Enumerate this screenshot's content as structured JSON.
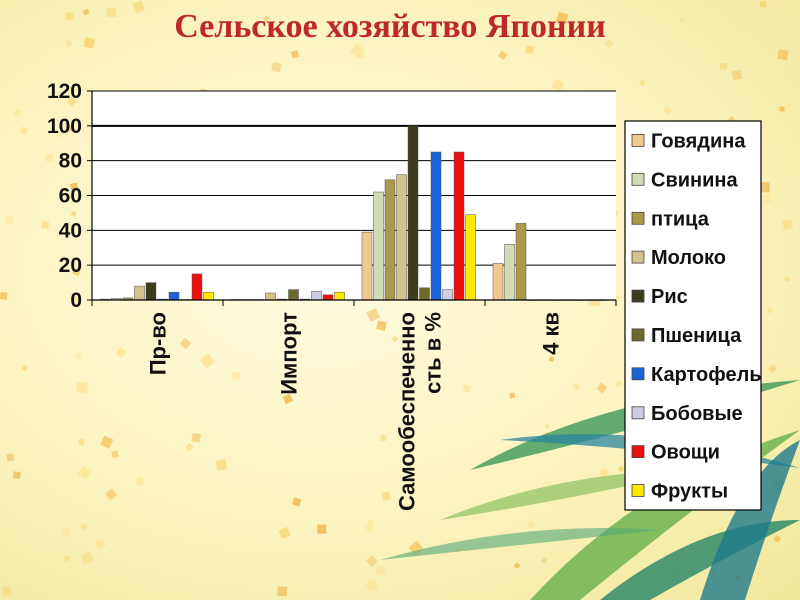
{
  "title": "Сельское хозяйство Японии",
  "chart_data": {
    "type": "bar",
    "categories": [
      "Пр-во",
      "Импорт",
      "Самообеспеченно\nсть в %",
      "4 кв"
    ],
    "ylim": [
      0,
      120
    ],
    "yticks": [
      0,
      20,
      40,
      60,
      80,
      100,
      120
    ],
    "grid": true,
    "legend_position": "right",
    "series": [
      {
        "name": "Говядина",
        "color": "#f0c890",
        "values": [
          0.5,
          0.3,
          39,
          21
        ]
      },
      {
        "name": "Свинина",
        "color": "#d2dcb4",
        "values": [
          1,
          0.3,
          62,
          32
        ]
      },
      {
        "name": "птица",
        "color": "#a89a48",
        "values": [
          1.2,
          0.3,
          69,
          44
        ]
      },
      {
        "name": "Молоко",
        "color": "#d2c28c",
        "values": [
          8,
          4,
          72,
          0
        ]
      },
      {
        "name": "Рис",
        "color": "#3e3a1c",
        "values": [
          10,
          0.5,
          100,
          0
        ]
      },
      {
        "name": "Пшеница",
        "color": "#6e6a2c",
        "values": [
          0.5,
          6,
          7,
          0
        ]
      },
      {
        "name": "Картофель",
        "color": "#1a64d8",
        "values": [
          4.5,
          0.5,
          85,
          0
        ]
      },
      {
        "name": "Бобовые",
        "color": "#cccce4",
        "values": [
          0.3,
          5,
          6,
          0
        ]
      },
      {
        "name": "Овощи",
        "color": "#ee1010",
        "values": [
          15,
          3,
          85,
          0
        ]
      },
      {
        "name": "Фрукты",
        "color": "#ffe800",
        "values": [
          4.5,
          4.5,
          49,
          0
        ]
      }
    ]
  }
}
